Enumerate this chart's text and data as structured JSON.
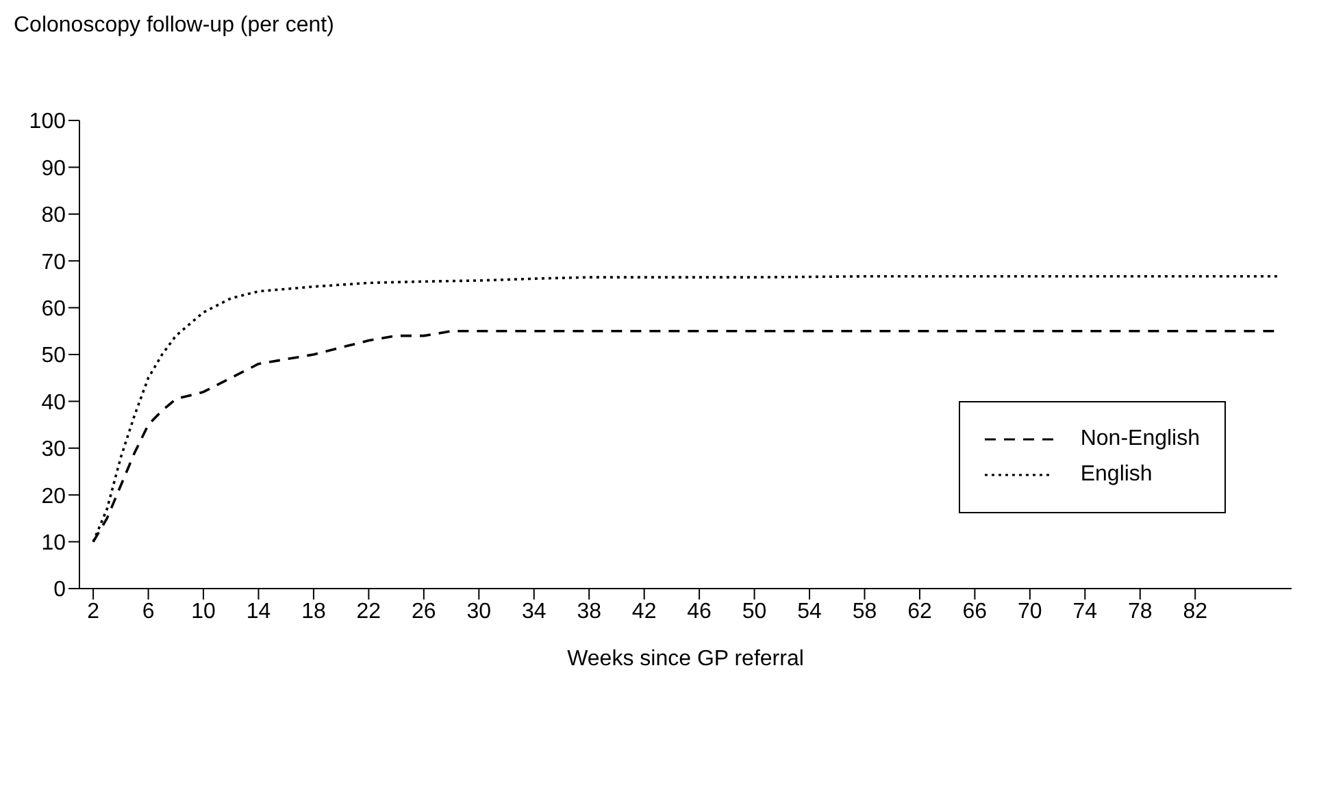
{
  "chart_data": {
    "type": "line",
    "xlabel": "Weeks since GP referral",
    "ylabel": "Colonoscopy follow-up (per cent)",
    "xlim": [
      1,
      89
    ],
    "xticks": [
      2,
      6,
      10,
      14,
      18,
      22,
      26,
      30,
      34,
      38,
      42,
      46,
      50,
      54,
      58,
      62,
      66,
      70,
      74,
      78,
      82
    ],
    "ylim": [
      0,
      100
    ],
    "yticks": [
      0,
      10,
      20,
      30,
      40,
      50,
      60,
      70,
      80,
      90,
      100
    ],
    "grid": false,
    "legend": "right",
    "marker": "none",
    "series": [
      {
        "name": "Non-English",
        "color": "#000000",
        "line_style": "dashed",
        "x": [
          2,
          3,
          4,
          5,
          6,
          7,
          8,
          10,
          12,
          14,
          18,
          22,
          24,
          26,
          28,
          88
        ],
        "values": [
          10,
          15,
          22,
          29,
          35,
          38,
          40.5,
          42,
          45,
          48,
          50,
          53,
          54,
          54,
          55,
          55
        ]
      },
      {
        "name": "English",
        "color": "#000000",
        "line_style": "dotted",
        "x": [
          2,
          3,
          4,
          5,
          6,
          7,
          8,
          10,
          12,
          14,
          18,
          22,
          26,
          30,
          34,
          38,
          50,
          58,
          88
        ],
        "values": [
          10,
          17,
          28,
          37,
          45,
          50,
          54,
          59,
          62,
          63.5,
          64.5,
          65.3,
          65.6,
          65.8,
          66.2,
          66.5,
          66.5,
          66.7,
          66.7
        ]
      }
    ]
  }
}
